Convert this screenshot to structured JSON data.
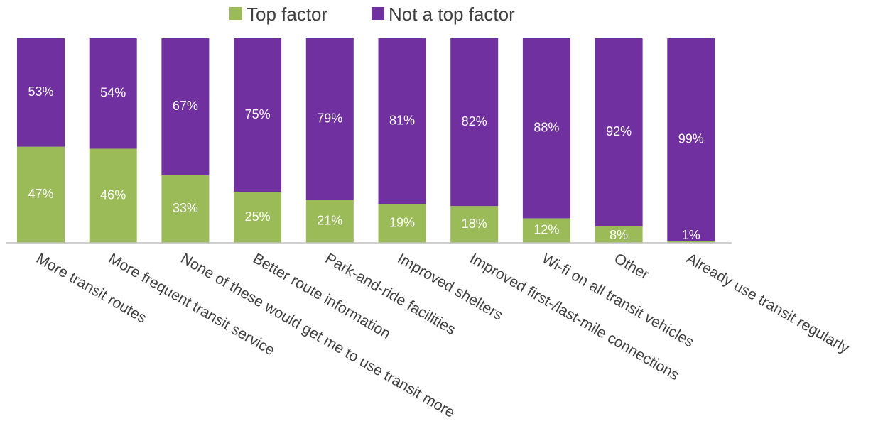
{
  "chart_data": {
    "type": "bar",
    "stacked": true,
    "categories": [
      "More transit routes",
      "More frequent transit service",
      "None of these would get me to use transit more",
      "Better route information",
      "Park-and-ride facilities",
      "Improved shelters",
      "Improved first-/last-mile connections",
      "Wi-fi on all transit vehicles",
      "Other",
      "Already use transit regularly"
    ],
    "series": [
      {
        "name": "Top factor",
        "color": "#9BBB59",
        "values": [
          47,
          46,
          33,
          25,
          21,
          19,
          18,
          12,
          8,
          1
        ],
        "labels": [
          "47%",
          "46%",
          "33%",
          "25%",
          "21%",
          "19%",
          "18%",
          "12%",
          "8%",
          "1%"
        ]
      },
      {
        "name": "Not a top factor",
        "color": "#7030A0",
        "values": [
          53,
          54,
          67,
          75,
          79,
          81,
          82,
          88,
          92,
          99
        ],
        "labels": [
          "53%",
          "54%",
          "67%",
          "75%",
          "79%",
          "81%",
          "82%",
          "88%",
          "92%",
          "99%"
        ]
      }
    ],
    "ylim": [
      0,
      100
    ],
    "grid": false,
    "legend_position": "top-center",
    "tick_label_rotation": 30
  }
}
